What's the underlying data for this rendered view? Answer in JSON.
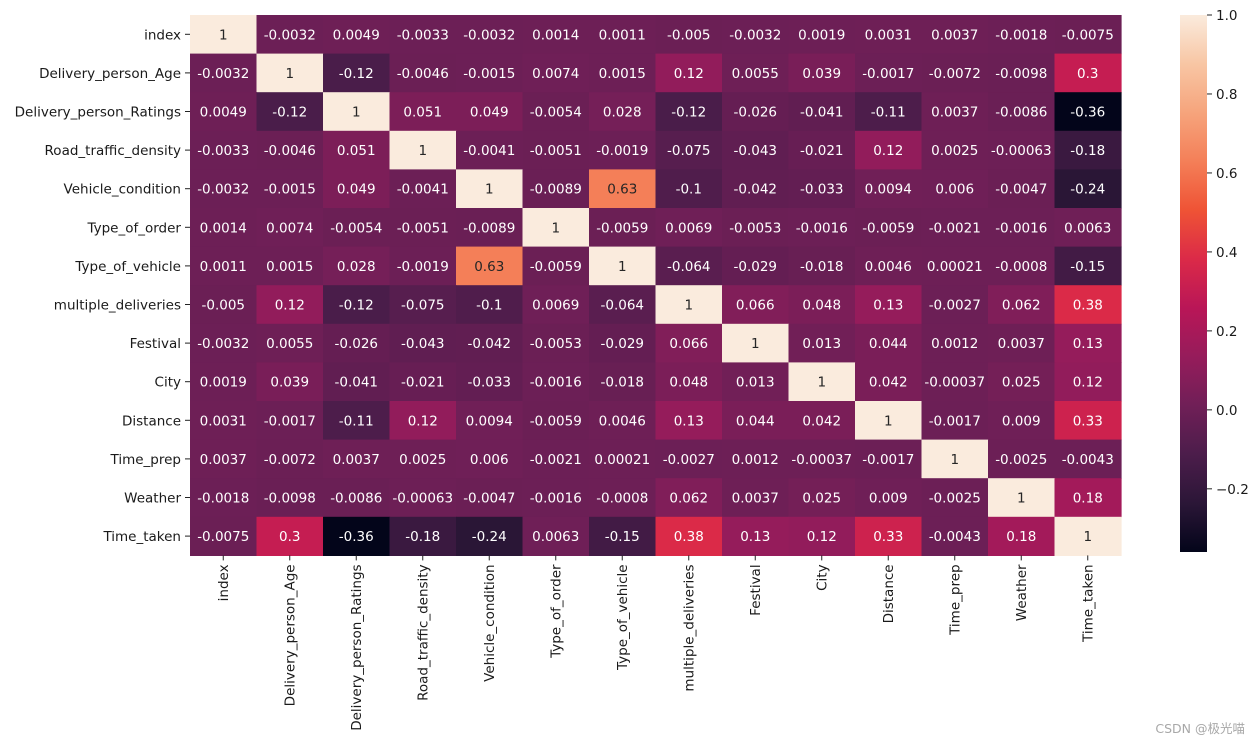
{
  "chart_data": {
    "type": "heatmap",
    "title": "",
    "labels": [
      "index",
      "Delivery_person_Age",
      "Delivery_person_Ratings",
      "Road_traffic_density",
      "Vehicle_condition",
      "Type_of_order",
      "Type_of_vehicle",
      "multiple_deliveries",
      "Festival",
      "City",
      "Distance",
      "Time_prep",
      "Weather",
      "Time_taken"
    ],
    "cells": [
      [
        "1",
        "-0.0032",
        "0.0049",
        "-0.0033",
        "-0.0032",
        "0.0014",
        "0.0011",
        "-0.005",
        "-0.0032",
        "0.0019",
        "0.0031",
        "0.0037",
        "-0.0018",
        "-0.0075"
      ],
      [
        "-0.0032",
        "1",
        "-0.12",
        "-0.0046",
        "-0.0015",
        "0.0074",
        "0.0015",
        "0.12",
        "0.0055",
        "0.039",
        "-0.0017",
        "-0.0072",
        "-0.0098",
        "0.3"
      ],
      [
        "0.0049",
        "-0.12",
        "1",
        "0.051",
        "0.049",
        "-0.0054",
        "0.028",
        "-0.12",
        "-0.026",
        "-0.041",
        "-0.11",
        "0.0037",
        "-0.0086",
        "-0.36"
      ],
      [
        "-0.0033",
        "-0.0046",
        "0.051",
        "1",
        "-0.0041",
        "-0.0051",
        "-0.0019",
        "-0.075",
        "-0.043",
        "-0.021",
        "0.12",
        "0.0025",
        "-0.00063",
        "-0.18"
      ],
      [
        "-0.0032",
        "-0.0015",
        "0.049",
        "-0.0041",
        "1",
        "-0.0089",
        "0.63",
        "-0.1",
        "-0.042",
        "-0.033",
        "0.0094",
        "0.006",
        "-0.0047",
        "-0.24"
      ],
      [
        "0.0014",
        "0.0074",
        "-0.0054",
        "-0.0051",
        "-0.0089",
        "1",
        "-0.0059",
        "0.0069",
        "-0.0053",
        "-0.0016",
        "-0.0059",
        "-0.0021",
        "-0.0016",
        "0.0063"
      ],
      [
        "0.0011",
        "0.0015",
        "0.028",
        "-0.0019",
        "0.63",
        "-0.0059",
        "1",
        "-0.064",
        "-0.029",
        "-0.018",
        "0.0046",
        "0.00021",
        "-0.0008",
        "-0.15"
      ],
      [
        "-0.005",
        "0.12",
        "-0.12",
        "-0.075",
        "-0.1",
        "0.0069",
        "-0.064",
        "1",
        "0.066",
        "0.048",
        "0.13",
        "-0.0027",
        "0.062",
        "0.38"
      ],
      [
        "-0.0032",
        "0.0055",
        "-0.026",
        "-0.043",
        "-0.042",
        "-0.0053",
        "-0.029",
        "0.066",
        "1",
        "0.013",
        "0.044",
        "0.0012",
        "0.0037",
        "0.13"
      ],
      [
        "0.0019",
        "0.039",
        "-0.041",
        "-0.021",
        "-0.033",
        "-0.0016",
        "-0.018",
        "0.048",
        "0.013",
        "1",
        "0.042",
        "-0.00037",
        "0.025",
        "0.12"
      ],
      [
        "0.0031",
        "-0.0017",
        "-0.11",
        "0.12",
        "0.0094",
        "-0.0059",
        "0.0046",
        "0.13",
        "0.044",
        "0.042",
        "1",
        "-0.0017",
        "0.009",
        "0.33"
      ],
      [
        "0.0037",
        "-0.0072",
        "0.0037",
        "0.0025",
        "0.006",
        "-0.0021",
        "0.00021",
        "-0.0027",
        "0.0012",
        "-0.00037",
        "-0.0017",
        "1",
        "-0.0025",
        "-0.0043"
      ],
      [
        "-0.0018",
        "-0.0098",
        "-0.0086",
        "-0.00063",
        "-0.0047",
        "-0.0016",
        "-0.0008",
        "0.062",
        "0.0037",
        "0.025",
        "0.009",
        "-0.0025",
        "1",
        "0.18"
      ],
      [
        "-0.0075",
        "0.3",
        "-0.36",
        "-0.18",
        "-0.24",
        "0.0063",
        "-0.15",
        "0.38",
        "0.13",
        "0.12",
        "0.33",
        "-0.0043",
        "0.18",
        "1"
      ]
    ],
    "vmin": -0.36,
    "vmax": 1.0,
    "colorbar_ticks": [
      "1.0",
      "0.8",
      "0.6",
      "0.4",
      "0.2",
      "0.0",
      "−0.2"
    ],
    "colormap": [
      "#03051a",
      "#2b1637",
      "#4c1d4b",
      "#701f57",
      "#961c5b",
      "#b91657",
      "#db2a48",
      "#ef5335",
      "#f47f58",
      "#f6a47c",
      "#f8c6a4",
      "#faebdd"
    ]
  },
  "watermark": "CSDN @极光喵"
}
